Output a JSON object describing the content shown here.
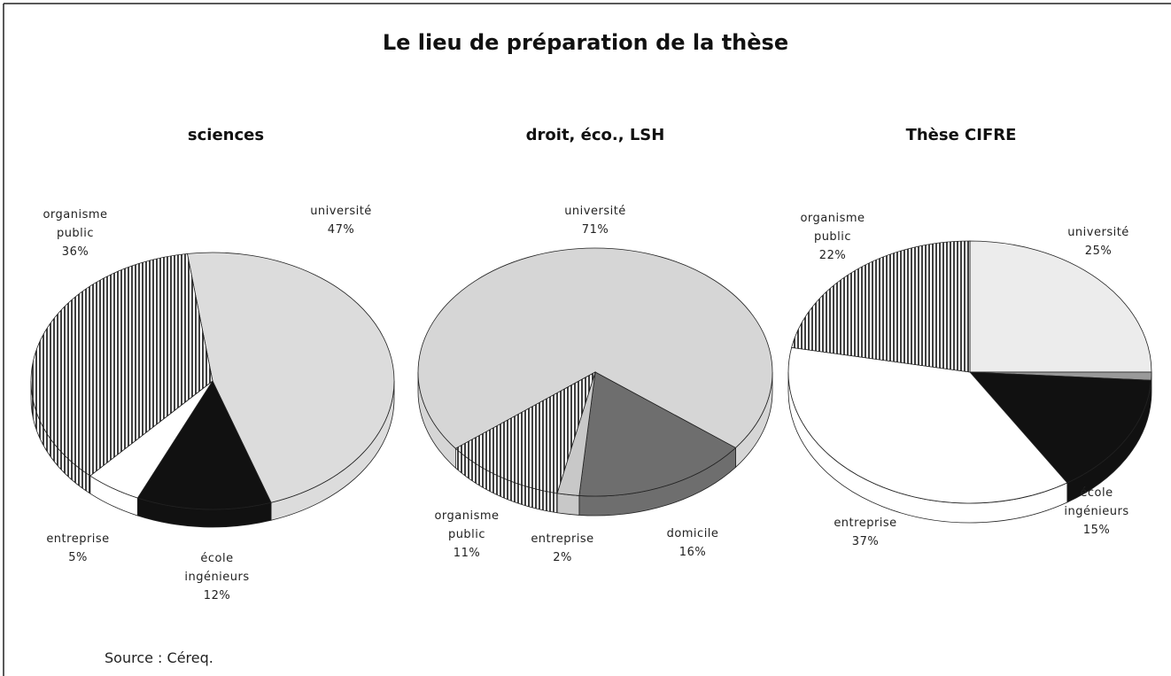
{
  "title": "Le lieu de préparation de la thèse",
  "source": "Source : Céreq.",
  "chart_data": [
    {
      "type": "pie",
      "title": "sciences",
      "startangle": -8,
      "categories": [
        "université",
        "école ingénieurs",
        "entreprise",
        "organisme public"
      ],
      "values": [
        47,
        12,
        5,
        36
      ],
      "value_labels": [
        "47%",
        "12%",
        "5%",
        "36%"
      ],
      "colors": [
        "#dcdcdc",
        "#111111",
        "#ffffff",
        "#ffffff"
      ],
      "patterns": [
        "solid",
        "solid",
        "solid",
        "vertical-lines"
      ]
    },
    {
      "type": "pie",
      "title": "droit, éco., LSH",
      "startangle": -128,
      "categories": [
        "université",
        "domicile",
        "entreprise",
        "organisme public"
      ],
      "values": [
        71,
        16,
        2,
        11
      ],
      "value_labels": [
        "71%",
        "16%",
        "2%",
        "11%"
      ],
      "colors": [
        "#d6d6d6",
        "#6e6e6e",
        "#c8c8c8",
        "#ffffff"
      ],
      "patterns": [
        "solid",
        "solid",
        "solid",
        "vertical-lines"
      ]
    },
    {
      "type": "pie",
      "title": "Thèse CIFRE",
      "startangle": 0,
      "categories": [
        "université",
        null,
        "école ingénieurs",
        "entreprise",
        "organisme public"
      ],
      "values": [
        25,
        1,
        15,
        37,
        22
      ],
      "value_labels": [
        "25%",
        null,
        "15%",
        "37%",
        "22%"
      ],
      "colors": [
        "#ececec",
        "#9a9a9a",
        "#111111",
        "#ffffff",
        "#ffffff"
      ],
      "patterns": [
        "solid",
        "solid",
        "solid",
        "solid",
        "vertical-lines"
      ]
    }
  ]
}
